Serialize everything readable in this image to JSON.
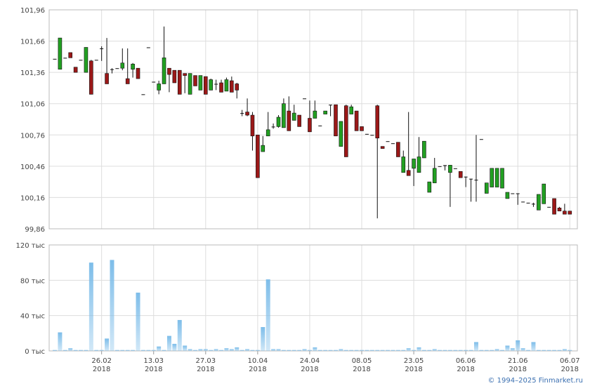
{
  "chart_data": {
    "type": "candlestick",
    "ylim": [
      99.86,
      101.96
    ],
    "yticks": [
      {
        "value": 99.86,
        "label": "99,86"
      },
      {
        "value": 100.16,
        "label": "100,16"
      },
      {
        "value": 100.46,
        "label": "100,46"
      },
      {
        "value": 100.76,
        "label": "100,76"
      },
      {
        "value": 101.06,
        "label": "101,06"
      },
      {
        "value": 101.36,
        "label": "101,36"
      },
      {
        "value": 101.66,
        "label": "101,66"
      },
      {
        "value": 101.96,
        "label": "101,96"
      }
    ],
    "volume_ylim": [
      0,
      120
    ],
    "volume_yticks": [
      {
        "value": 0,
        "label": "0 тыс"
      },
      {
        "value": 40,
        "label": "40 тыс"
      },
      {
        "value": 80,
        "label": "80 тыс"
      },
      {
        "value": 120,
        "label": "120 тыс"
      }
    ],
    "up_color": "#22a022",
    "down_color": "#9b1818",
    "volume_color": "#7dbde9",
    "grid": true,
    "year": "2018",
    "source": "© 1994–2025 Finmarket.ru",
    "categories": [
      null,
      null,
      null,
      null,
      null,
      null,
      null,
      null,
      null,
      "26.02",
      null,
      null,
      null,
      null,
      null,
      null,
      null,
      null,
      null,
      "13.03",
      null,
      null,
      null,
      null,
      null,
      null,
      null,
      null,
      null,
      "27.03",
      null,
      null,
      null,
      null,
      null,
      null,
      null,
      null,
      null,
      "10.04",
      null,
      null,
      null,
      null,
      null,
      null,
      null,
      null,
      null,
      "24.04",
      null,
      null,
      null,
      null,
      null,
      null,
      null,
      null,
      null,
      "08.05",
      null,
      null,
      null,
      null,
      null,
      null,
      null,
      null,
      null,
      "23.05",
      null,
      null,
      null,
      null,
      null,
      null,
      null,
      null,
      null,
      "06.06",
      null,
      null,
      null,
      null,
      null,
      null,
      null,
      null,
      null,
      "21.06",
      null,
      null,
      null,
      null,
      null,
      null,
      null,
      null,
      null,
      "06.07"
    ],
    "ohlc": [
      [
        101.49,
        101.49,
        101.49,
        101.49
      ],
      [
        101.39,
        101.69,
        101.39,
        101.69
      ],
      [
        101.5,
        101.5,
        101.5,
        101.5
      ],
      [
        101.55,
        101.55,
        101.5,
        101.5
      ],
      [
        101.41,
        101.41,
        101.36,
        101.36
      ],
      [
        101.48,
        101.48,
        101.48,
        101.48
      ],
      [
        101.36,
        101.6,
        101.36,
        101.6
      ],
      [
        101.47,
        101.48,
        101.15,
        101.15
      ],
      [
        101.48,
        101.48,
        101.48,
        101.48
      ],
      [
        101.59,
        101.61,
        101.47,
        101.59
      ],
      [
        101.35,
        101.69,
        101.25,
        101.25
      ],
      [
        101.39,
        101.4,
        101.35,
        101.39
      ],
      [
        101.4,
        101.4,
        101.4,
        101.4
      ],
      [
        101.4,
        101.59,
        101.38,
        101.45
      ],
      [
        101.3,
        101.59,
        101.25,
        101.25
      ],
      [
        101.39,
        101.45,
        101.31,
        101.44
      ],
      [
        101.4,
        101.4,
        101.3,
        101.3
      ],
      [
        101.15,
        101.15,
        101.15,
        101.15
      ],
      [
        101.6,
        101.6,
        101.6,
        101.6
      ],
      [
        101.27,
        101.27,
        101.27,
        101.27
      ],
      [
        101.19,
        101.28,
        101.15,
        101.25
      ],
      [
        101.25,
        101.8,
        101.25,
        101.5
      ],
      [
        101.4,
        101.4,
        101.17,
        101.34
      ],
      [
        101.38,
        101.38,
        101.26,
        101.26
      ],
      [
        101.38,
        101.38,
        101.15,
        101.15
      ],
      [
        101.35,
        101.35,
        101.16,
        101.33
      ],
      [
        101.15,
        101.35,
        101.15,
        101.35
      ],
      [
        101.33,
        101.33,
        101.23,
        101.23
      ],
      [
        101.19,
        101.33,
        101.19,
        101.33
      ],
      [
        101.32,
        101.32,
        101.15,
        101.15
      ],
      [
        101.19,
        101.3,
        101.19,
        101.29
      ],
      [
        101.25,
        101.29,
        101.19,
        101.25
      ],
      [
        101.26,
        101.29,
        101.17,
        101.17
      ],
      [
        101.18,
        101.31,
        101.18,
        101.29
      ],
      [
        101.28,
        101.32,
        101.17,
        101.17
      ],
      [
        101.25,
        101.26,
        101.11,
        101.19
      ],
      [
        100.97,
        101.0,
        100.94,
        100.97
      ],
      [
        100.98,
        101.11,
        100.94,
        100.95
      ],
      [
        100.95,
        100.98,
        100.61,
        100.75
      ],
      [
        100.76,
        100.76,
        100.35,
        100.35
      ],
      [
        100.6,
        100.75,
        100.6,
        100.66
      ],
      [
        100.75,
        100.98,
        100.75,
        100.81
      ],
      [
        100.84,
        100.87,
        100.82,
        100.84
      ],
      [
        100.84,
        100.95,
        100.83,
        100.93
      ],
      [
        100.83,
        101.11,
        100.83,
        101.06
      ],
      [
        100.99,
        101.13,
        100.8,
        100.8
      ],
      [
        100.9,
        101.05,
        100.9,
        100.97
      ],
      [
        100.95,
        100.95,
        100.84,
        100.84
      ],
      [
        101.11,
        101.11,
        101.11,
        101.11
      ],
      [
        100.92,
        101.09,
        100.79,
        100.79
      ],
      [
        100.92,
        101.09,
        100.92,
        100.99
      ],
      [
        100.85,
        100.85,
        100.85,
        100.85
      ],
      [
        100.96,
        100.99,
        100.96,
        100.99
      ],
      [
        101.05,
        101.05,
        100.94,
        101.05
      ],
      [
        101.05,
        101.05,
        100.75,
        100.75
      ],
      [
        100.65,
        100.89,
        100.65,
        100.89
      ],
      [
        101.04,
        101.05,
        100.55,
        100.55
      ],
      [
        100.96,
        101.05,
        100.96,
        101.03
      ],
      [
        100.99,
        100.99,
        100.8,
        100.8
      ],
      [
        100.84,
        100.84,
        100.8,
        100.8
      ],
      [
        100.77,
        100.77,
        100.77,
        100.77
      ],
      [
        100.76,
        100.76,
        100.76,
        100.76
      ],
      [
        101.04,
        101.05,
        99.96,
        100.73
      ],
      [
        100.65,
        100.65,
        100.63,
        100.63
      ],
      [
        100.7,
        100.7,
        100.7,
        100.7
      ],
      [
        100.68,
        100.68,
        100.68,
        100.68
      ],
      [
        100.69,
        100.69,
        100.55,
        100.55
      ],
      [
        100.4,
        100.61,
        100.4,
        100.55
      ],
      [
        100.42,
        100.98,
        100.37,
        100.37
      ],
      [
        100.44,
        100.53,
        100.27,
        100.53
      ],
      [
        100.4,
        100.74,
        100.4,
        100.55
      ],
      [
        100.54,
        100.7,
        100.54,
        100.7
      ],
      [
        100.21,
        100.31,
        100.21,
        100.31
      ],
      [
        100.3,
        100.54,
        100.3,
        100.44
      ],
      [
        100.46,
        100.46,
        100.46,
        100.46
      ],
      [
        100.47,
        100.47,
        100.42,
        100.47
      ],
      [
        100.4,
        100.47,
        100.07,
        100.47
      ],
      [
        100.44,
        100.44,
        100.44,
        100.44
      ],
      [
        100.41,
        100.41,
        100.35,
        100.35
      ],
      [
        100.36,
        100.36,
        100.26,
        100.36
      ],
      [
        100.34,
        100.34,
        100.12,
        100.34
      ],
      [
        100.33,
        100.76,
        100.12,
        100.33
      ],
      [
        100.72,
        100.72,
        100.72,
        100.72
      ],
      [
        100.2,
        100.3,
        100.2,
        100.3
      ],
      [
        100.26,
        100.44,
        100.26,
        100.44
      ],
      [
        100.26,
        100.44,
        100.26,
        100.44
      ],
      [
        100.25,
        100.44,
        100.25,
        100.44
      ],
      [
        100.15,
        100.21,
        100.15,
        100.21
      ],
      [
        100.2,
        100.2,
        100.2,
        100.2
      ],
      [
        100.2,
        100.2,
        100.09,
        100.2
      ],
      [
        100.12,
        100.12,
        100.12,
        100.12
      ],
      [
        100.11,
        100.11,
        100.11,
        100.11
      ],
      [
        100.1,
        100.11,
        100.07,
        100.1
      ],
      [
        100.04,
        100.19,
        100.04,
        100.19
      ],
      [
        100.1,
        100.29,
        100.1,
        100.29
      ],
      [
        100.07,
        100.07,
        100.07,
        100.07
      ],
      [
        100.15,
        100.15,
        100.0,
        100.0
      ],
      [
        100.06,
        100.07,
        100.03,
        100.03
      ],
      [
        100.03,
        100.1,
        100.0,
        100.0
      ],
      [
        100.03,
        100.03,
        100.0,
        100.0
      ]
    ],
    "volume": [
      1,
      21,
      1,
      3,
      1,
      1,
      1,
      100,
      1,
      1,
      14,
      103,
      1,
      1,
      1,
      1,
      66,
      1,
      1,
      1,
      5,
      1,
      17,
      8,
      35,
      6,
      2,
      1,
      2,
      2,
      1,
      2,
      1,
      3,
      2,
      4,
      1,
      2,
      1,
      1,
      27,
      81,
      2,
      2,
      1,
      1,
      1,
      1,
      2,
      1,
      4,
      1,
      1,
      1,
      1,
      2,
      1,
      1,
      1,
      1,
      1,
      1,
      1,
      1,
      1,
      1,
      1,
      1,
      3,
      1,
      4,
      1,
      1,
      2,
      1,
      1,
      1,
      1,
      1,
      1,
      1,
      10,
      1,
      1,
      1,
      2,
      1,
      6,
      3,
      12,
      3,
      1,
      10,
      1,
      1,
      1,
      1,
      1,
      2,
      1
    ]
  }
}
